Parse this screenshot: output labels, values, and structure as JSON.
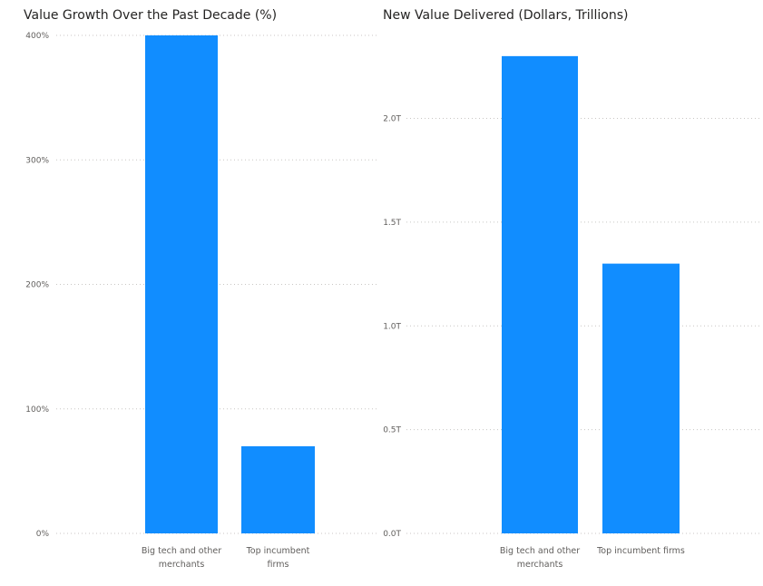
{
  "accent_color": "#118dff",
  "chart_data": [
    {
      "type": "bar",
      "title": "Value Growth Over the Past Decade (%)",
      "categories": [
        "Big tech and other merchants",
        "Top incumbent firms"
      ],
      "category_lines": [
        [
          "Big tech and other",
          "merchants"
        ],
        [
          "Top incumbent",
          "firms"
        ]
      ],
      "values": [
        400,
        70
      ],
      "ylim": [
        0,
        400
      ],
      "yticks": [
        0,
        100,
        200,
        300,
        400
      ],
      "ytick_labels": [
        "0%",
        "100%",
        "200%",
        "300%",
        "400%"
      ],
      "grid": true
    },
    {
      "type": "bar",
      "title": "New Value Delivered (Dollars, Trillions)",
      "categories": [
        "Big tech and other merchants",
        "Top incumbent firms"
      ],
      "category_lines": [
        [
          "Big tech and other",
          "merchants"
        ],
        [
          "Top incumbent firms"
        ]
      ],
      "values": [
        2.3,
        1.3
      ],
      "ylim": [
        0,
        2.4
      ],
      "yticks": [
        0,
        0.5,
        1.0,
        1.5,
        2.0
      ],
      "ytick_labels": [
        "0.0T",
        "0.5T",
        "1.0T",
        "1.5T",
        "2.0T"
      ],
      "grid": true
    }
  ]
}
